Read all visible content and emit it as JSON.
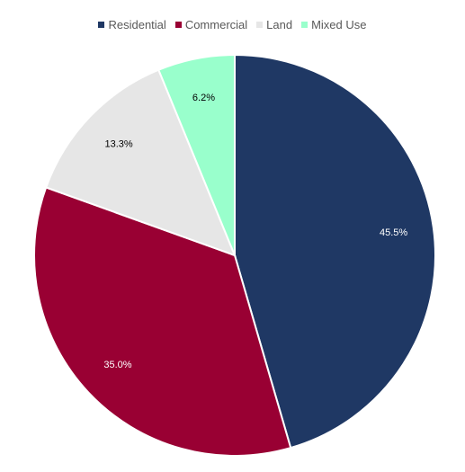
{
  "chart_data": {
    "type": "pie",
    "title": "",
    "categories": [
      "Residential",
      "Commercial",
      "Land",
      "Mixed Use"
    ],
    "values": [
      45.5,
      35.0,
      13.3,
      6.2
    ],
    "labels": [
      "45.5%",
      "35.0%",
      "13.3%",
      "6.2%"
    ],
    "colors": [
      "#1f3864",
      "#990033",
      "#e6e6e6",
      "#99ffcc"
    ],
    "label_colors": [
      "#ffffff",
      "#ffffff",
      "#000000",
      "#000000"
    ],
    "start_angle_deg": 0,
    "direction": "clockwise",
    "legend_position": "top-center"
  }
}
